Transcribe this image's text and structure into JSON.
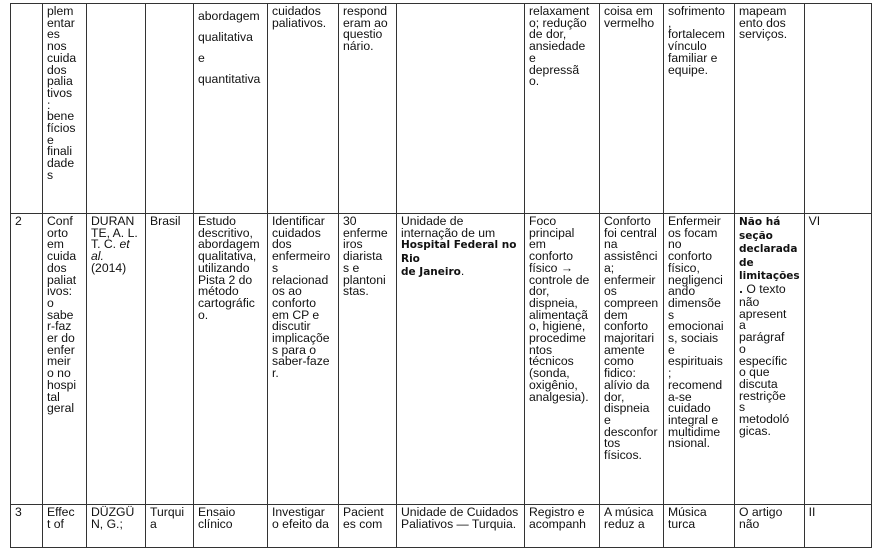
{
  "table": {
    "rows": [
      {
        "cells": [
          "",
          "plem\nentar\nes\nnos\ncuida\ndos\npalia\ntivos\n:\nbene\nfícios\ne\nfinali\ndade\ns",
          "",
          "",
          "abordagem\nqualitativa\ne\nquantitativa",
          "cuidados\npaliativos.",
          "respond\neram ao\nquestio\nnário.",
          "",
          "relaxament\no; redução\nde dor,\nansiedade\ne\ndepressã\no.",
          "coisa em\nvermelho",
          "sofrimento\n,\nfortalecem\nvínculo\nfamiliar e\nequipe.",
          "mapeam\nento dos\nserviços.",
          ""
        ]
      },
      {
        "cells": [
          "2",
          "Conf\norto\nem\ncuida\ndos\npaliat\nivos:\no\nsabe\nr-faz\ner do\nenfer\nmeir\no no\nhospi\ntal\ngeral",
          [
            {
              "text": "DURAN\nTE, A. L.\nT. C. "
            },
            {
              "text": "et\nal.",
              "style": "i"
            },
            {
              "text": "\n(2014)"
            }
          ],
          "Brasil",
          "Estudo\ndescritivo,\nabordagem\nqualitativa,\nutilizando\nPista 2 do\nmétodo\ncartográfic\no.",
          "Identificar\ncuidados\ndos\nenfermeiro\ns\nrelacionad\nos ao\nconforto\nem CP e\ndiscutir\nimplicaçõe\ns para o\nsaber-faze\nr.",
          "30\nenferme\niros\ndiarista\ns e\nplantoni\nstas.",
          [
            {
              "text": "Unidade de\ninternação de um\n"
            },
            {
              "text": "Hospital Federal no Rio\nde Janeiro",
              "style": "b"
            },
            {
              "text": "."
            }
          ],
          "Foco\nprincipal\nem\nconforto\nfísico →\ncontrole de\ndor,\ndispneia,\nalimentaçã\no, higiene,\nprocedime\nntos\ntécnicos\n(sonda,\noxigênio,\nanalgesia).",
          "Conforto\nfoi central\nna\nassistênci\na;\nenfermeir\nos\ncompreen\ndem\nconforto\nmajoritari\namente\ncomo\nfidico:\nalívio da\ndor,\ndispneia\ne\ndesconfor\ntos\nfísicos.",
          "Enfermeir\nos focam\nno\nconforto\nfísico,\nnegligenci\nando\ndimensõe\ns\nemocionai\ns, sociais\ne\nespirituais\n;\nrecomend\na-se\ncuidado\nintegral e\nmultidime\nnsional.",
          [
            {
              "text": "Não há\nseção\ndeclarada\nde\nlimitações\n.",
              "style": "b"
            },
            {
              "text": " O texto\nnão\napresent\na\nparágraf\no\nespecífic\no que\ndiscuta\nrestriçõe\ns\nmetodoló\ngicas."
            }
          ],
          "VI"
        ]
      },
      {
        "cells": [
          "3",
          "Effec\nt of",
          "DÜZGÜ\nN, G.;",
          "Turqui\na",
          "Ensaio\nclínico",
          "Investigar\no efeito da",
          "Pacient\nes com",
          "Unidade de Cuidados\nPaliativos — Turquia.",
          "Registro e\nacompanh",
          "A música\nreduz a",
          "Música\nturca",
          "O artigo\nnão",
          "II"
        ]
      }
    ]
  }
}
